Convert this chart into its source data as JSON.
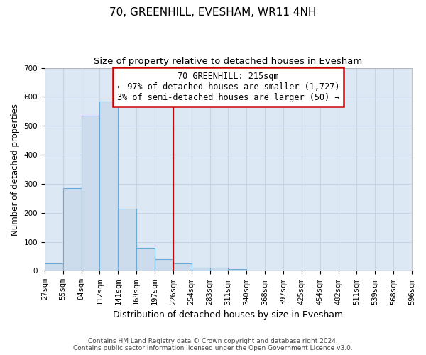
{
  "title": "70, GREENHILL, EVESHAM, WR11 4NH",
  "subtitle": "Size of property relative to detached houses in Evesham",
  "xlabel": "Distribution of detached houses by size in Evesham",
  "ylabel": "Number of detached properties",
  "footer_line1": "Contains HM Land Registry data © Crown copyright and database right 2024.",
  "footer_line2": "Contains public sector information licensed under the Open Government Licence v3.0.",
  "bin_labels": [
    "27sqm",
    "55sqm",
    "84sqm",
    "112sqm",
    "141sqm",
    "169sqm",
    "197sqm",
    "226sqm",
    "254sqm",
    "283sqm",
    "311sqm",
    "340sqm",
    "368sqm",
    "397sqm",
    "425sqm",
    "454sqm",
    "482sqm",
    "511sqm",
    "539sqm",
    "568sqm",
    "596sqm"
  ],
  "bar_values": [
    25,
    285,
    535,
    585,
    213,
    80,
    40,
    25,
    10,
    10,
    5,
    0,
    0,
    0,
    0,
    0,
    0,
    0,
    0,
    0
  ],
  "bar_color": "#ccdcec",
  "bar_edge_color": "#6aaad4",
  "ylim": [
    0,
    700
  ],
  "yticks": [
    0,
    100,
    200,
    300,
    400,
    500,
    600,
    700
  ],
  "property_line_x": 7.0,
  "annotation_line1": "70 GREENHILL: 215sqm",
  "annotation_line2": "← 97% of detached houses are smaller (1,727)",
  "annotation_line3": "3% of semi-detached houses are larger (50) →",
  "annotation_box_facecolor": "#ffffff",
  "annotation_box_edgecolor": "#cc0000",
  "red_line_color": "#cc0000",
  "grid_color": "#c8d4e4",
  "background_color": "#dce8f4",
  "title_fontsize": 11,
  "subtitle_fontsize": 9.5,
  "annotation_fontsize": 8.5,
  "ylabel_fontsize": 8.5,
  "xlabel_fontsize": 9,
  "footer_fontsize": 6.5,
  "tick_fontsize": 7.5
}
